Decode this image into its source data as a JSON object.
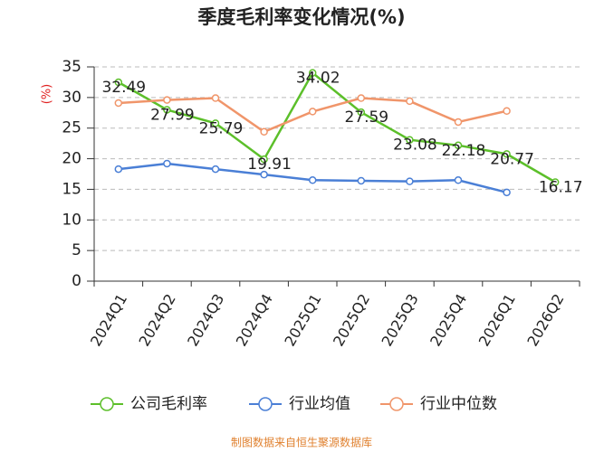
{
  "chart_data": {
    "type": "line",
    "title": "季度毛利率变化情况(%)",
    "y_label": "(%)",
    "source": "制图数据来自恒生聚源数据库",
    "categories": [
      "2024Q1",
      "2024Q2",
      "2024Q3",
      "2024Q4",
      "2025Q1",
      "2025Q2",
      "2025Q3",
      "2025Q4",
      "2026Q1",
      "2026Q2"
    ],
    "series": [
      {
        "name": "公司毛利率",
        "color": "#5cbf2a",
        "values": [
          32.49,
          27.99,
          25.79,
          19.91,
          34.02,
          27.59,
          23.08,
          22.18,
          20.77,
          16.17
        ],
        "show_labels": true
      },
      {
        "name": "行业均值",
        "color": "#4a7fd6",
        "values": [
          18.3,
          19.2,
          18.3,
          17.4,
          16.5,
          16.4,
          16.3,
          16.5,
          14.5,
          null
        ]
      },
      {
        "name": "行业中位数",
        "color": "#f0956a",
        "values": [
          29.1,
          29.6,
          29.9,
          24.4,
          27.7,
          29.9,
          29.4,
          26.0,
          27.8,
          null
        ]
      }
    ],
    "ylim": [
      0,
      35
    ],
    "yticks": [
      0,
      5,
      10,
      15,
      20,
      25,
      30,
      35
    ],
    "grid": true
  }
}
